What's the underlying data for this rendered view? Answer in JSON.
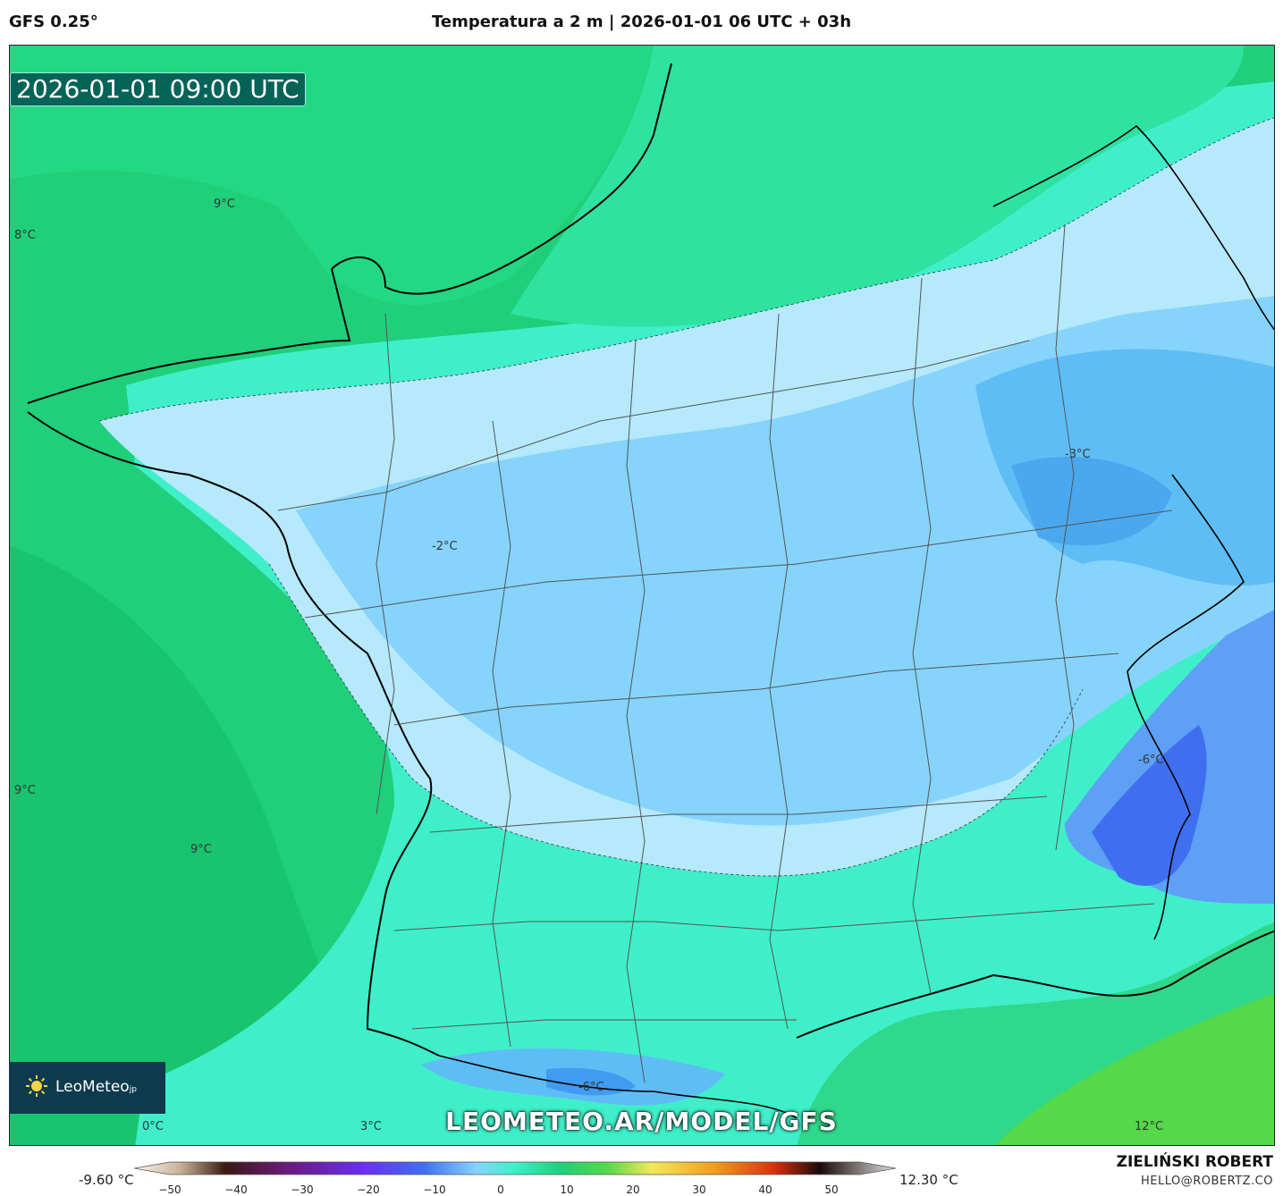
{
  "header": {
    "model": "GFS 0.25°",
    "title": "Temperatura a 2 m | 2026-01-01 06 UTC + 03h"
  },
  "map": {
    "timestamp": "2026-01-01 09:00 UTC",
    "labels": [
      {
        "id": "l1",
        "text": "9°C"
      },
      {
        "id": "l2",
        "text": "8°C"
      },
      {
        "id": "l3",
        "text": "-3°C"
      },
      {
        "id": "l4",
        "text": "-2°C"
      },
      {
        "id": "l5",
        "text": "-6°C"
      },
      {
        "id": "l6",
        "text": "9°C"
      },
      {
        "id": "l7",
        "text": "9°C"
      },
      {
        "id": "l8",
        "text": "-6°C"
      },
      {
        "id": "l9",
        "text": "0°C"
      },
      {
        "id": "l10",
        "text": "3°C"
      },
      {
        "id": "l11",
        "text": "12°C"
      }
    ],
    "colors": {
      "sea_green": "#1fcf7a",
      "mid_green": "#25df8f",
      "aqua": "#3fefc9",
      "light_blue": "#b5e9fb",
      "blue": "#86d4fb",
      "deep_blue": "#4aa8ef",
      "dark_blue": "#3f6ff0",
      "lime": "#55d84a"
    }
  },
  "logo": {
    "text": "LeoMeteo",
    "sub": "jp"
  },
  "watermark": "LEOMETEO.AR/MODEL/GFS",
  "colorbar": {
    "min_label": "-9.60 °C",
    "max_label": "12.30 °C",
    "ticks": [
      "−50",
      "−40",
      "−30",
      "−20",
      "−10",
      "0",
      "10",
      "20",
      "30",
      "40",
      "50"
    ]
  },
  "credit": {
    "author": "ZIELIŃSKI ROBERT",
    "email": "HELLO@ROBERTZ.CO"
  }
}
